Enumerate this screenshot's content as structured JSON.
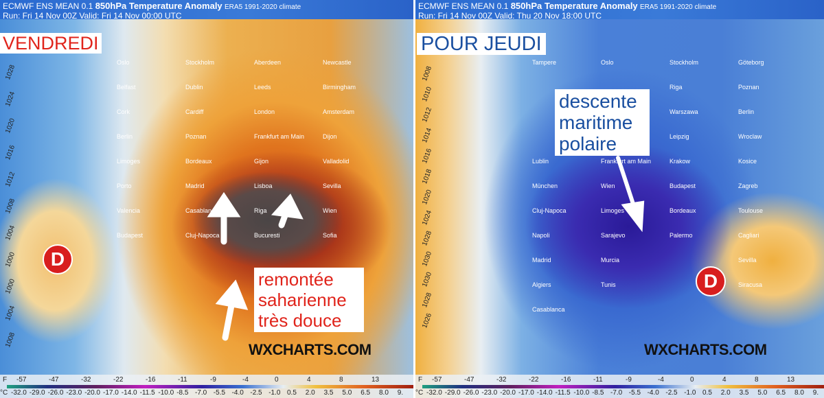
{
  "left_panel": {
    "title": "ECMWF ENS MEAN 0.1",
    "title_bold": "850hPa Temperature Anomaly",
    "climate": "ERA5 1991-2020 climate",
    "run": "Run: Fri 14 Nov 00Z Valid: Fri 14 Nov 00:00 UTC",
    "day_label": "VENDREDI",
    "annotation": [
      "remontée",
      "saharienne",
      "très douce"
    ],
    "low_marker": "D",
    "watermark": "WXCHARTS.COM",
    "isobars": [
      "1028",
      "1024",
      "1020",
      "1016",
      "1012",
      "1008",
      "1004",
      "1000",
      "1000",
      "1004",
      "1008"
    ],
    "cities": [
      "Oslo",
      "Stockholm",
      "Aberdeen",
      "Newcastle",
      "Belfast",
      "Dublin",
      "Leeds",
      "Birmingham",
      "Cork",
      "Cardiff",
      "London",
      "Amsterdam",
      "Berlin",
      "Poznan",
      "Frankfurt am Main",
      "Dijon",
      "Limoges",
      "Bordeaux",
      "Gijon",
      "Valladolid",
      "Porto",
      "Madrid",
      "Lisboa",
      "Sevilla",
      "Valencia",
      "Casablanca",
      "Riga",
      "Wien",
      "Budapest",
      "Cluj-Napoca",
      "Bucuresti",
      "Sofia"
    ]
  },
  "right_panel": {
    "title": "ECMWF ENS MEAN 0.1",
    "title_bold": "850hPa Temperature Anomaly",
    "climate": "ERA5 1991-2020 climate",
    "run": "Run: Fri 14 Nov 00Z Valid: Thu 20 Nov 18:00 UTC",
    "day_label": "POUR JEUDI",
    "annotation": [
      "descente",
      "maritime",
      "polaire"
    ],
    "low_marker": "D",
    "watermark": "WXCHARTS.COM",
    "isobars": [
      "1008",
      "1010",
      "1012",
      "1014",
      "1016",
      "1018",
      "1020",
      "1024",
      "1028",
      "1030",
      "1030",
      "1028",
      "1026"
    ],
    "cities": [
      "Tampere",
      "Oslo",
      "Stockholm",
      "Göteborg",
      "Riga",
      "Poznan",
      "Warszawa",
      "Berlin",
      "Leipzig",
      "Wroclaw",
      "Lublin",
      "Frankfurt am Main",
      "Krakow",
      "Kosice",
      "München",
      "Wien",
      "Budapest",
      "Zagreb",
      "Cluj-Napoca",
      "Limoges",
      "Bordeaux",
      "Toulouse",
      "Napoli",
      "Sarajevo",
      "Palermo",
      "Cagliari",
      "Madrid",
      "Murcia",
      "Sevilla",
      "Algiers",
      "Tunis",
      "Siracusa",
      "Casablanca"
    ]
  },
  "colorbar": {
    "f_unit": "F",
    "c_unit": "°C",
    "f_ticks": [
      "-57",
      "-47",
      "-32",
      "-22",
      "-16",
      "-11",
      "-9",
      "-4",
      "0",
      "4",
      "8",
      "13"
    ],
    "c_ticks": [
      "-32.0",
      "-29.0",
      "-26.0",
      "-23.0",
      "-20.0",
      "-17.0",
      "-14.0",
      "-11.5",
      "-10.0",
      "-8.5",
      "-7.0",
      "-5.5",
      "-4.0",
      "-2.5",
      "-1.0",
      "0.5",
      "2.0",
      "3.5",
      "5.0",
      "6.5",
      "8.0",
      "9."
    ]
  },
  "colors": {
    "warm_label": "#e0241b",
    "cold_label": "#1a4fa0",
    "low_marker": "#d81e1e"
  }
}
